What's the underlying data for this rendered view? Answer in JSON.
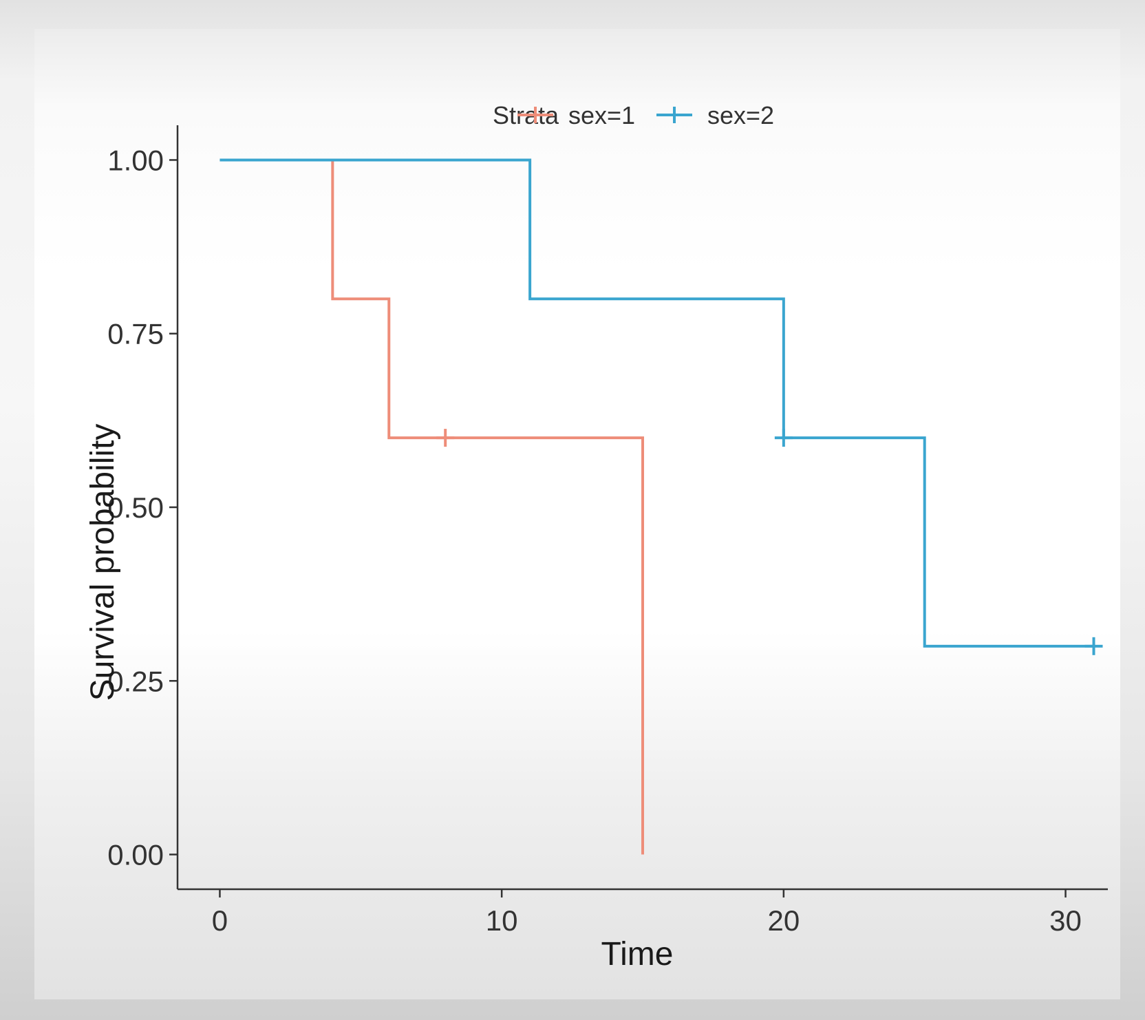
{
  "chart_data": {
    "type": "line",
    "title": "",
    "xlabel": "Time",
    "ylabel": "Survival probability",
    "xlim": [
      -1.5,
      31.5
    ],
    "ylim": [
      -0.05,
      1.05
    ],
    "xticks": [
      0,
      10,
      20,
      30
    ],
    "yticks": [
      0,
      0.25,
      0.5,
      0.75,
      1.0
    ],
    "xtick_labels": [
      "0",
      "10",
      "20",
      "30"
    ],
    "ytick_labels": [
      "0.00",
      "0.25",
      "0.50",
      "0.75",
      "1.00"
    ],
    "legend": {
      "title": "Strata",
      "position": "top",
      "entries": [
        "sex=1",
        "sex=2"
      ]
    },
    "series": [
      {
        "name": "sex=1",
        "color": "#ee8d79",
        "steps": [
          [
            0,
            1.0
          ],
          [
            4,
            0.8
          ],
          [
            6,
            0.6
          ],
          [
            15,
            0.0
          ]
        ],
        "end_time": 15,
        "censored": [
          [
            8,
            0.6
          ]
        ]
      },
      {
        "name": "sex=2",
        "color": "#3aa5cf",
        "steps": [
          [
            0,
            1.0
          ],
          [
            11,
            0.8
          ],
          [
            20,
            0.6
          ],
          [
            25,
            0.3
          ]
        ],
        "end_time": 31,
        "censored": [
          [
            20,
            0.6
          ],
          [
            31,
            0.3
          ]
        ]
      }
    ],
    "grid": false
  }
}
